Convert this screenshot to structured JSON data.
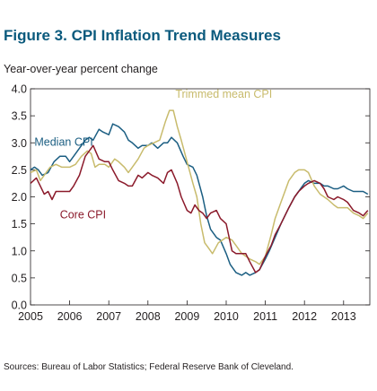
{
  "figure": {
    "title": "Figure 3. CPI Inflation Trend Measures",
    "y_unit": "Year-over-year percent change",
    "source": "Sources: Bureau of Labor Statistics; Federal Reserve Bank of Cleveland."
  },
  "chart_data": {
    "type": "line",
    "title": "Figure 3. CPI Inflation Trend Measures",
    "xlabel": "",
    "ylabel": "Year-over-year percent change",
    "xlim": [
      2005.0,
      2013.67
    ],
    "ylim": [
      0.0,
      4.0
    ],
    "x_ticks": [
      "2005",
      "2006",
      "2007",
      "2008",
      "2009",
      "2010",
      "2011",
      "2012",
      "2013"
    ],
    "y_ticks": [
      "0.0",
      "0.5",
      "1.0",
      "1.5",
      "2.0",
      "2.5",
      "3.0",
      "3.5",
      "4.0"
    ],
    "grid": false,
    "legend": "inline labels",
    "series": [
      {
        "name": "Median CPI",
        "color": "#1b5e82",
        "points": [
          [
            2005.0,
            2.5
          ],
          [
            2005.1,
            2.55
          ],
          [
            2005.2,
            2.5
          ],
          [
            2005.3,
            2.4
          ],
          [
            2005.45,
            2.45
          ],
          [
            2005.6,
            2.65
          ],
          [
            2005.75,
            2.75
          ],
          [
            2005.9,
            2.75
          ],
          [
            2006.0,
            2.65
          ],
          [
            2006.1,
            2.75
          ],
          [
            2006.25,
            2.9
          ],
          [
            2006.4,
            3.05
          ],
          [
            2006.5,
            3.1
          ],
          [
            2006.6,
            3.05
          ],
          [
            2006.75,
            3.25
          ],
          [
            2006.85,
            3.2
          ],
          [
            2007.0,
            3.15
          ],
          [
            2007.1,
            3.35
          ],
          [
            2007.25,
            3.3
          ],
          [
            2007.4,
            3.2
          ],
          [
            2007.5,
            3.05
          ],
          [
            2007.6,
            3.0
          ],
          [
            2007.75,
            2.9
          ],
          [
            2007.85,
            2.95
          ],
          [
            2008.0,
            2.95
          ],
          [
            2008.1,
            3.0
          ],
          [
            2008.25,
            2.9
          ],
          [
            2008.4,
            3.0
          ],
          [
            2008.5,
            3.0
          ],
          [
            2008.6,
            3.1
          ],
          [
            2008.75,
            3.0
          ],
          [
            2008.9,
            2.75
          ],
          [
            2009.0,
            2.6
          ],
          [
            2009.15,
            2.55
          ],
          [
            2009.25,
            2.4
          ],
          [
            2009.4,
            2.0
          ],
          [
            2009.5,
            1.65
          ],
          [
            2009.6,
            1.4
          ],
          [
            2009.75,
            1.25
          ],
          [
            2009.85,
            1.2
          ],
          [
            2010.0,
            0.95
          ],
          [
            2010.1,
            0.75
          ],
          [
            2010.25,
            0.6
          ],
          [
            2010.4,
            0.55
          ],
          [
            2010.5,
            0.6
          ],
          [
            2010.6,
            0.55
          ],
          [
            2010.75,
            0.6
          ],
          [
            2010.85,
            0.65
          ],
          [
            2011.0,
            0.85
          ],
          [
            2011.1,
            1.0
          ],
          [
            2011.25,
            1.25
          ],
          [
            2011.4,
            1.5
          ],
          [
            2011.5,
            1.65
          ],
          [
            2011.6,
            1.8
          ],
          [
            2011.75,
            2.0
          ],
          [
            2011.85,
            2.1
          ],
          [
            2012.0,
            2.25
          ],
          [
            2012.1,
            2.3
          ],
          [
            2012.25,
            2.25
          ],
          [
            2012.4,
            2.25
          ],
          [
            2012.5,
            2.2
          ],
          [
            2012.6,
            2.2
          ],
          [
            2012.75,
            2.15
          ],
          [
            2012.85,
            2.15
          ],
          [
            2013.0,
            2.2
          ],
          [
            2013.1,
            2.15
          ],
          [
            2013.25,
            2.1
          ],
          [
            2013.4,
            2.1
          ],
          [
            2013.5,
            2.1
          ],
          [
            2013.62,
            2.05
          ]
        ]
      },
      {
        "name": "Trimmed mean CPI",
        "color": "#c8bb6c",
        "points": [
          [
            2005.0,
            2.45
          ],
          [
            2005.15,
            2.5
          ],
          [
            2005.25,
            2.3
          ],
          [
            2005.4,
            2.45
          ],
          [
            2005.5,
            2.55
          ],
          [
            2005.65,
            2.6
          ],
          [
            2005.8,
            2.55
          ],
          [
            2006.0,
            2.55
          ],
          [
            2006.15,
            2.6
          ],
          [
            2006.3,
            2.75
          ],
          [
            2006.45,
            2.85
          ],
          [
            2006.55,
            2.8
          ],
          [
            2006.65,
            2.55
          ],
          [
            2006.75,
            2.6
          ],
          [
            2006.9,
            2.6
          ],
          [
            2007.0,
            2.55
          ],
          [
            2007.15,
            2.7
          ],
          [
            2007.25,
            2.65
          ],
          [
            2007.4,
            2.55
          ],
          [
            2007.5,
            2.45
          ],
          [
            2007.6,
            2.55
          ],
          [
            2007.75,
            2.7
          ],
          [
            2007.9,
            2.9
          ],
          [
            2008.0,
            2.95
          ],
          [
            2008.15,
            3.0
          ],
          [
            2008.3,
            3.05
          ],
          [
            2008.45,
            3.4
          ],
          [
            2008.55,
            3.6
          ],
          [
            2008.65,
            3.6
          ],
          [
            2008.75,
            3.3
          ],
          [
            2008.85,
            3.05
          ],
          [
            2009.0,
            2.65
          ],
          [
            2009.15,
            2.25
          ],
          [
            2009.25,
            2.0
          ],
          [
            2009.35,
            1.5
          ],
          [
            2009.45,
            1.15
          ],
          [
            2009.55,
            1.05
          ],
          [
            2009.65,
            0.95
          ],
          [
            2009.8,
            1.15
          ],
          [
            2009.9,
            1.2
          ],
          [
            2010.0,
            1.25
          ],
          [
            2010.15,
            1.2
          ],
          [
            2010.25,
            1.1
          ],
          [
            2010.4,
            0.95
          ],
          [
            2010.5,
            0.9
          ],
          [
            2010.6,
            0.85
          ],
          [
            2010.75,
            0.8
          ],
          [
            2010.85,
            0.75
          ],
          [
            2011.0,
            0.9
          ],
          [
            2011.15,
            1.3
          ],
          [
            2011.25,
            1.6
          ],
          [
            2011.4,
            1.9
          ],
          [
            2011.5,
            2.1
          ],
          [
            2011.6,
            2.3
          ],
          [
            2011.75,
            2.45
          ],
          [
            2011.85,
            2.5
          ],
          [
            2012.0,
            2.5
          ],
          [
            2012.1,
            2.45
          ],
          [
            2012.25,
            2.2
          ],
          [
            2012.4,
            2.05
          ],
          [
            2012.5,
            2.0
          ],
          [
            2012.6,
            1.95
          ],
          [
            2012.75,
            1.85
          ],
          [
            2012.85,
            1.8
          ],
          [
            2013.0,
            1.8
          ],
          [
            2013.1,
            1.8
          ],
          [
            2013.25,
            1.7
          ],
          [
            2013.4,
            1.65
          ],
          [
            2013.5,
            1.6
          ],
          [
            2013.62,
            1.7
          ]
        ]
      },
      {
        "name": "Core CPI",
        "color": "#8b1a2b",
        "points": [
          [
            2005.0,
            2.25
          ],
          [
            2005.15,
            2.35
          ],
          [
            2005.25,
            2.2
          ],
          [
            2005.35,
            2.05
          ],
          [
            2005.45,
            2.1
          ],
          [
            2005.55,
            1.95
          ],
          [
            2005.65,
            2.1
          ],
          [
            2005.8,
            2.1
          ],
          [
            2006.0,
            2.1
          ],
          [
            2006.1,
            2.2
          ],
          [
            2006.25,
            2.4
          ],
          [
            2006.4,
            2.75
          ],
          [
            2006.5,
            2.85
          ],
          [
            2006.6,
            2.95
          ],
          [
            2006.75,
            2.7
          ],
          [
            2006.9,
            2.65
          ],
          [
            2007.0,
            2.65
          ],
          [
            2007.1,
            2.5
          ],
          [
            2007.25,
            2.3
          ],
          [
            2007.4,
            2.25
          ],
          [
            2007.5,
            2.2
          ],
          [
            2007.6,
            2.2
          ],
          [
            2007.75,
            2.4
          ],
          [
            2007.85,
            2.35
          ],
          [
            2008.0,
            2.45
          ],
          [
            2008.1,
            2.4
          ],
          [
            2008.25,
            2.35
          ],
          [
            2008.4,
            2.25
          ],
          [
            2008.5,
            2.45
          ],
          [
            2008.6,
            2.5
          ],
          [
            2008.75,
            2.25
          ],
          [
            2008.85,
            2.0
          ],
          [
            2009.0,
            1.75
          ],
          [
            2009.1,
            1.7
          ],
          [
            2009.2,
            1.85
          ],
          [
            2009.3,
            1.75
          ],
          [
            2009.4,
            1.7
          ],
          [
            2009.5,
            1.6
          ],
          [
            2009.6,
            1.7
          ],
          [
            2009.75,
            1.75
          ],
          [
            2009.85,
            1.6
          ],
          [
            2010.0,
            1.5
          ],
          [
            2010.15,
            1.0
          ],
          [
            2010.25,
            0.95
          ],
          [
            2010.4,
            0.95
          ],
          [
            2010.5,
            0.95
          ],
          [
            2010.6,
            0.8
          ],
          [
            2010.75,
            0.6
          ],
          [
            2010.85,
            0.65
          ],
          [
            2011.0,
            0.9
          ],
          [
            2011.15,
            1.1
          ],
          [
            2011.25,
            1.3
          ],
          [
            2011.4,
            1.5
          ],
          [
            2011.5,
            1.65
          ],
          [
            2011.6,
            1.8
          ],
          [
            2011.75,
            2.0
          ],
          [
            2011.85,
            2.1
          ],
          [
            2012.0,
            2.2
          ],
          [
            2012.1,
            2.25
          ],
          [
            2012.25,
            2.3
          ],
          [
            2012.4,
            2.25
          ],
          [
            2012.5,
            2.15
          ],
          [
            2012.6,
            2.0
          ],
          [
            2012.75,
            1.95
          ],
          [
            2012.85,
            2.0
          ],
          [
            2013.0,
            1.95
          ],
          [
            2013.1,
            1.9
          ],
          [
            2013.25,
            1.75
          ],
          [
            2013.4,
            1.7
          ],
          [
            2013.5,
            1.65
          ],
          [
            2013.62,
            1.75
          ]
        ]
      }
    ],
    "annotations": [
      "Median CPI",
      "Trimmed mean CPI",
      "Core CPI"
    ]
  }
}
